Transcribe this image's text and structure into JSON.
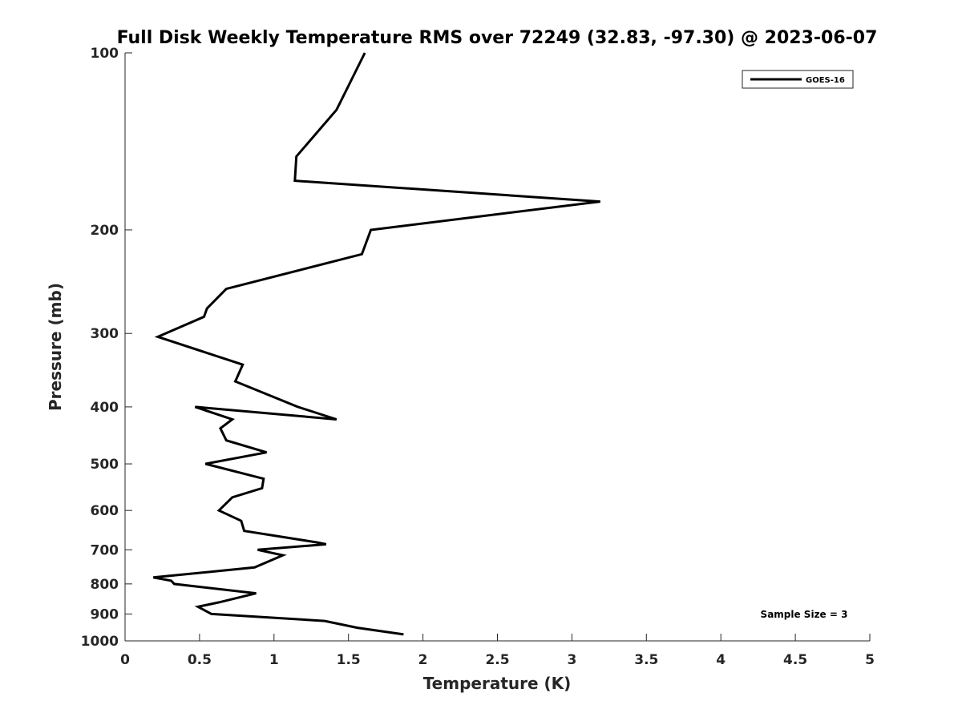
{
  "chart_data": {
    "type": "line",
    "title": "Full Disk Weekly Temperature RMS over 72249 (32.83, -97.30) @ 2023-06-07",
    "xlabel": "Temperature (K)",
    "ylabel": "Pressure (mb)",
    "xlim": [
      0,
      5
    ],
    "ylim": [
      1000,
      100
    ],
    "yscale": "log",
    "y_reversed": true,
    "grid": false,
    "legend_position": "top-right",
    "x_ticks": [
      "0",
      "0.5",
      "1",
      "1.5",
      "2",
      "2.5",
      "3",
      "3.5",
      "4",
      "4.5",
      "5"
    ],
    "y_ticks": [
      "100",
      "200",
      "300",
      "400",
      "500",
      "600",
      "700",
      "800",
      "900",
      "1000"
    ],
    "series": [
      {
        "name": "GOES-16",
        "color": "#000000",
        "x": [
          1.61,
          1.42,
          1.15,
          1.14,
          3.19,
          1.65,
          1.59,
          0.68,
          0.55,
          0.53,
          0.22,
          0.79,
          0.74,
          1.16,
          1.42,
          0.47,
          0.72,
          0.64,
          0.68,
          0.95,
          0.54,
          0.93,
          0.92,
          0.72,
          0.63,
          0.78,
          0.8,
          1.29,
          1.35,
          0.89,
          1.06,
          0.87,
          0.19,
          0.31,
          0.33,
          0.88,
          0.63,
          0.49,
          0.58,
          1.34,
          1.56,
          1.87
        ],
        "y": [
          100,
          125,
          150,
          165,
          179,
          200,
          220,
          252,
          272,
          281,
          304,
          339,
          362,
          400,
          420,
          400,
          420,
          435,
          456,
          478,
          500,
          530,
          550,
          570,
          600,
          625,
          650,
          680,
          685,
          700,
          715,
          750,
          780,
          790,
          800,
          830,
          860,
          875,
          900,
          925,
          950,
          975
        ]
      }
    ],
    "annotation": "Sample Size = 3"
  }
}
